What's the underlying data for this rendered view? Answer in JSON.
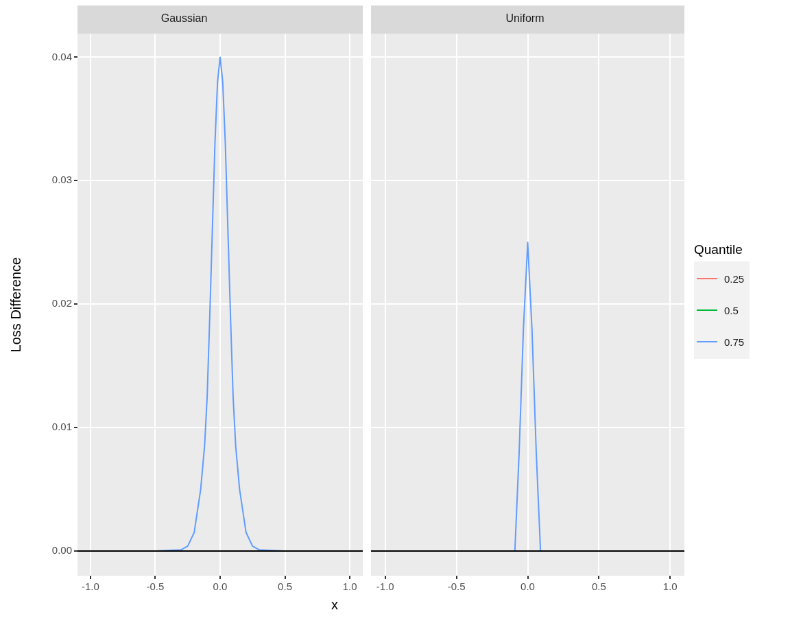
{
  "chart_data": [
    {
      "type": "line",
      "title": "Gaussian",
      "ylabel": "Loss Difference",
      "xlabel": "x",
      "x": [
        -1.0,
        -0.5,
        -0.3,
        -0.25,
        -0.2,
        -0.15,
        -0.12,
        -0.1,
        -0.08,
        -0.06,
        -0.04,
        -0.02,
        0,
        0.02,
        0.04,
        0.06,
        0.08,
        0.1,
        0.12,
        0.15,
        0.2,
        0.25,
        0.3,
        0.5,
        1.0
      ],
      "series": [
        {
          "color": "#f8766d",
          "values": [
            null,
            null,
            null,
            null,
            null,
            null,
            null,
            null,
            null,
            null,
            null,
            null,
            null,
            null,
            null,
            null,
            null,
            null,
            null,
            null,
            null,
            null,
            null,
            null,
            null
          ]
        },
        {
          "color": "#00ba38",
          "values": [
            null,
            null,
            null,
            null,
            null,
            null,
            null,
            null,
            null,
            null,
            null,
            null,
            null,
            null,
            null,
            null,
            null,
            null,
            null,
            null,
            null,
            null,
            null,
            null,
            null
          ]
        },
        {
          "color": "#619cff",
          "values": [
            0,
            0,
            0.0001,
            0.0004,
            0.0015,
            0.005,
            0.0085,
            0.0125,
            0.019,
            0.026,
            0.033,
            0.038,
            0.04,
            0.038,
            0.033,
            0.026,
            0.019,
            0.0125,
            0.0085,
            0.005,
            0.0015,
            0.0004,
            0.0001,
            0,
            0
          ]
        }
      ],
      "xlim": [
        -1.1,
        1.1
      ],
      "xticks": [
        {
          "value": -1,
          "label": "-1.0"
        },
        {
          "value": -0.5,
          "label": "-0.5"
        },
        {
          "value": 0,
          "label": "0.0"
        },
        {
          "value": 0.5,
          "label": "0.5"
        },
        {
          "value": 1,
          "label": "1.0"
        }
      ],
      "ylim": [
        -0.002,
        0.0419
      ],
      "yticks": [
        {
          "value": 0,
          "label": "0.00"
        },
        {
          "value": 0.01,
          "label": "0.01"
        },
        {
          "value": 0.02,
          "label": "0.02"
        },
        {
          "value": 0.03,
          "label": "0.03"
        },
        {
          "value": 0.04,
          "label": "0.04"
        }
      ],
      "ref_lines": [
        {
          "axis": "y",
          "value": 0,
          "color": "#000000"
        }
      ],
      "grid": true,
      "legend": false
    },
    {
      "type": "line",
      "title": "Uniform",
      "legend_title": "Quantile",
      "x": [
        -1.0,
        -0.09,
        -0.06,
        -0.03,
        0,
        0.03,
        0.06,
        0.09,
        1.0
      ],
      "series": [
        {
          "name": "0.25",
          "color": "#f8766d",
          "values": [
            null,
            null,
            null,
            null,
            null,
            null,
            null,
            null,
            null
          ]
        },
        {
          "name": "0.5",
          "color": "#00ba38",
          "values": [
            null,
            null,
            null,
            null,
            null,
            null,
            null,
            null,
            null
          ]
        },
        {
          "name": "0.75",
          "color": "#619cff",
          "values": [
            0,
            0,
            0.008,
            0.018,
            0.025,
            0.018,
            0.008,
            0,
            0
          ]
        }
      ],
      "xlim": [
        -1.1,
        1.1
      ],
      "xticks": [
        {
          "value": -1,
          "label": "-1.0"
        },
        -0.5,
        {
          "value": 0,
          "label": "0.0"
        },
        0.5,
        {
          "value": 1,
          "label": "1.0"
        }
      ],
      "ylim": [
        -0.002,
        0.0419
      ],
      "yticks": [
        0,
        0.01,
        0.02,
        0.03,
        0.04
      ],
      "ref_lines": [
        {
          "axis": "y",
          "value": 0,
          "color": "#000000"
        }
      ],
      "grid": true,
      "legend": "right",
      "tick_labels": "x"
    }
  ]
}
